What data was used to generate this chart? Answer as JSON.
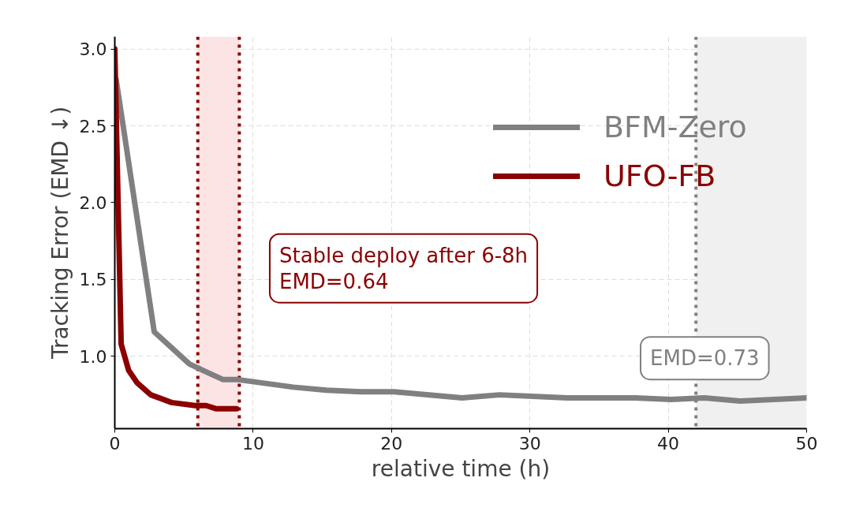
{
  "chart_data": {
    "type": "line",
    "xlabel": "relative time (h)",
    "ylabel": "Tracking Error (EMD ↓)",
    "xlim": [
      0,
      50
    ],
    "ylim": [
      0.53,
      3.08
    ],
    "xticks": [
      0,
      10,
      20,
      30,
      40,
      50
    ],
    "yticks": [
      {
        "value": 1.0,
        "label": "1.0"
      },
      {
        "value": 1.5,
        "label": "1.5"
      },
      {
        "value": 2.0,
        "label": "2.0"
      },
      {
        "value": 2.5,
        "label": "2.5"
      },
      {
        "value": 3.0,
        "label": "3.0"
      }
    ],
    "grid": true,
    "legend": "top right",
    "line_style": "solid",
    "marker": "none",
    "series": [
      {
        "name": "BFM-Zero",
        "color": "#808080",
        "x": [
          0.1,
          2.85,
          5.4,
          7.8,
          8.8,
          12.9,
          15.3,
          17.8,
          20.2,
          25.1,
          27.8,
          32.7,
          35.2,
          37.6,
          40.2,
          42.6,
          45.2,
          50
        ],
        "values": [
          2.8,
          1.16,
          0.95,
          0.85,
          0.85,
          0.8,
          0.78,
          0.77,
          0.77,
          0.73,
          0.75,
          0.73,
          0.73,
          0.73,
          0.72,
          0.73,
          0.71,
          0.73
        ]
      },
      {
        "name": "UFO-FB",
        "color": "#8b0000",
        "x": [
          0,
          0.46,
          1.0,
          1.6,
          2.6,
          4.1,
          5.8,
          6.6,
          7.3,
          8.8
        ],
        "values": [
          3.0,
          1.08,
          0.91,
          0.83,
          0.75,
          0.7,
          0.68,
          0.68,
          0.66,
          0.66
        ]
      }
    ],
    "ref_lines": [
      {
        "axis": "x",
        "value": 6,
        "color": "#8b0000",
        "line_style": "dotted"
      },
      {
        "axis": "x",
        "value": 9,
        "color": "#8b0000",
        "line_style": "dotted"
      },
      {
        "axis": "x",
        "value": 42,
        "color": "#808080",
        "line_style": "dotted"
      }
    ],
    "bands": [
      {
        "axis": "x",
        "from": 6,
        "to": 9,
        "color": "#fde4e4"
      },
      {
        "axis": "x",
        "from": 42,
        "to": 50,
        "color": "#f0f0f0"
      }
    ],
    "annotations": [
      "Stable deploy after 6-8h\nEMD=0.64",
      "EMD=0.73"
    ]
  }
}
